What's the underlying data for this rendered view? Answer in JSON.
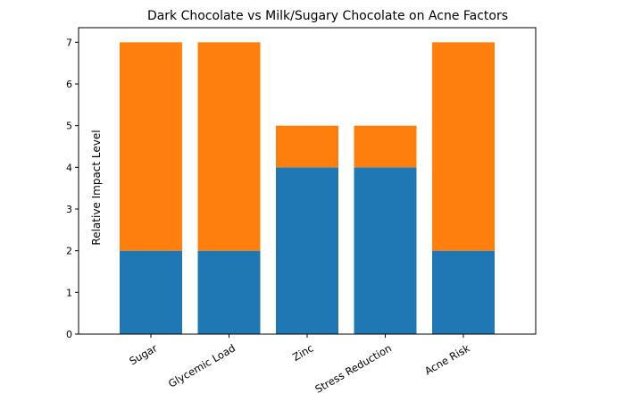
{
  "chart_data": {
    "type": "stacked_bar",
    "title": "Dark Chocolate vs Milk/Sugary Chocolate on Acne Factors",
    "y_label": "Relative Impact Level",
    "categories": [
      "Sugar",
      "Glycemic Load",
      "Zinc",
      "Stress Reduction",
      "Acne Risk"
    ],
    "series": [
      {
        "color": "#1f77b4",
        "values": [
          2,
          2,
          4,
          4,
          2
        ]
      },
      {
        "color": "#ff7f0e",
        "values": [
          5,
          5,
          1,
          1,
          5
        ]
      }
    ],
    "ylim": [
      0,
      7.35
    ],
    "yticks": [
      0,
      1,
      2,
      3,
      4,
      5,
      6,
      7
    ]
  }
}
